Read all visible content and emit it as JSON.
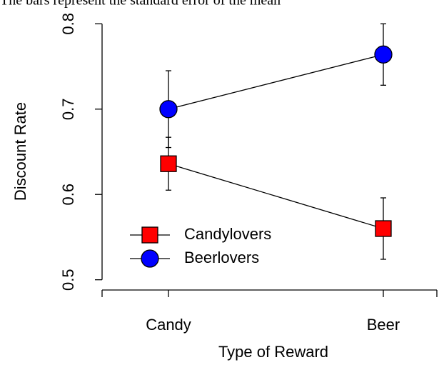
{
  "chart_data": {
    "type": "line",
    "subtitle": "The bars represent the standard error of the mean",
    "xlabel": "Type of Reward",
    "ylabel": "Discount Rate",
    "categories": [
      "Candy",
      "Beer"
    ],
    "series": [
      {
        "name": "Candylovers",
        "color": "#ff0000",
        "marker": "square",
        "values": [
          0.636,
          0.56
        ],
        "errors": [
          0.031,
          0.036
        ]
      },
      {
        "name": "Beerlovers",
        "color": "#0000ff",
        "marker": "circle",
        "values": [
          0.7,
          0.764
        ],
        "errors": [
          0.045,
          0.036
        ]
      }
    ],
    "ylim": [
      0.488,
      0.812
    ],
    "yticks": [
      0.5,
      0.6,
      0.7,
      0.8
    ],
    "grid": false,
    "legend": "bottom-left"
  }
}
